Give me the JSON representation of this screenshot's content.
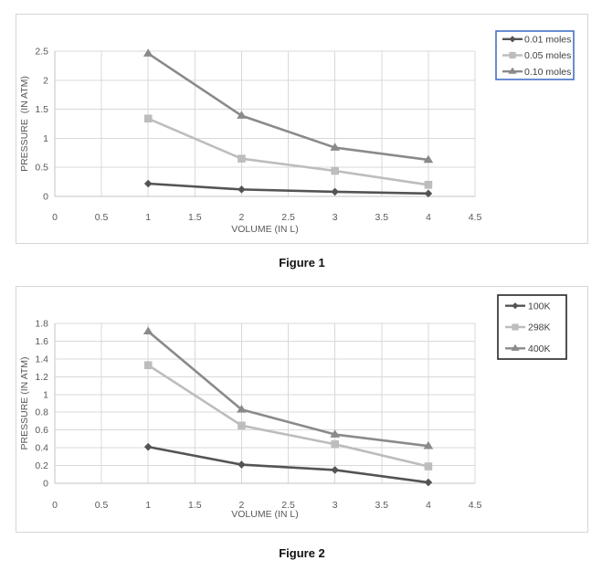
{
  "captions": [
    "Figure 1",
    "Figure 2"
  ],
  "chart_data": [
    {
      "type": "line",
      "title": "",
      "xlabel": "VOLUME (IN L)",
      "ylabel": "PRESSURE  (IN ATM)",
      "x": [
        1,
        2,
        3,
        4
      ],
      "xlim": [
        0,
        4.5
      ],
      "ylim": [
        0,
        2.5
      ],
      "xticks": [
        0,
        0.5,
        1,
        1.5,
        2,
        2.5,
        3,
        3.5,
        4,
        4.5
      ],
      "yticks": [
        0,
        0.5,
        1,
        1.5,
        2,
        2.5
      ],
      "grid": true,
      "legend_position": "top-right",
      "legend_border_color": "#4472c4",
      "grid_color": "#d9d9d9",
      "axis_color": "#c3c3c3",
      "tick_text_color": "#595959",
      "legend_text_color": "#3f3f3f",
      "series": [
        {
          "name": "0.01 moles",
          "marker": "diamond",
          "color": "#545454",
          "values": [
            0.22,
            0.12,
            0.08,
            0.05
          ]
        },
        {
          "name": "0.05 moles",
          "marker": "square",
          "color": "#bdbdbd",
          "values": [
            1.34,
            0.65,
            0.44,
            0.2
          ]
        },
        {
          "name": "0.10 moles",
          "marker": "triangle",
          "color": "#8a8a8a",
          "values": [
            2.46,
            1.39,
            0.84,
            0.63
          ]
        }
      ]
    },
    {
      "type": "line",
      "title": "",
      "xlabel": "VOLUME (IN L)",
      "ylabel": "PRESSURE (IN ATM)",
      "x": [
        1,
        2,
        3,
        4
      ],
      "xlim": [
        0,
        4.5
      ],
      "ylim": [
        0,
        1.8
      ],
      "xticks": [
        0,
        0.5,
        1,
        1.5,
        2,
        2.5,
        3,
        3.5,
        4,
        4.5
      ],
      "yticks": [
        0,
        0.2,
        0.4,
        0.6,
        0.8,
        1,
        1.2,
        1.4,
        1.6,
        1.8
      ],
      "grid": true,
      "legend_position": "top-right",
      "legend_border_color": "#262626",
      "grid_color": "#d9d9d9",
      "axis_color": "#c3c3c3",
      "tick_text_color": "#595959",
      "legend_text_color": "#3f3f3f",
      "series": [
        {
          "name": "100K",
          "marker": "diamond",
          "color": "#545454",
          "values": [
            0.41,
            0.21,
            0.15,
            0.01
          ]
        },
        {
          "name": "298K",
          "marker": "square",
          "color": "#bdbdbd",
          "values": [
            1.33,
            0.65,
            0.44,
            0.19
          ]
        },
        {
          "name": "400K",
          "marker": "triangle",
          "color": "#8a8a8a",
          "values": [
            1.71,
            0.83,
            0.55,
            0.42
          ]
        }
      ]
    }
  ]
}
